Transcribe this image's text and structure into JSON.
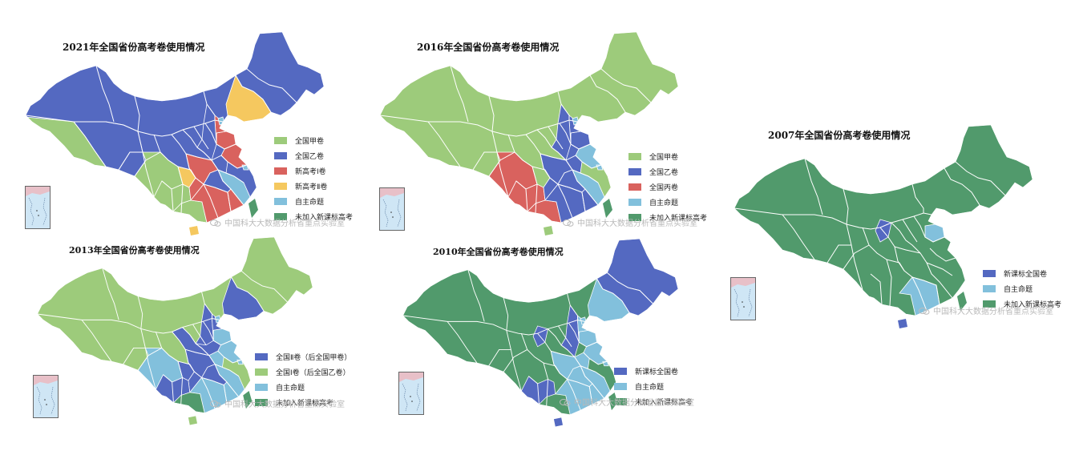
{
  "colors": {
    "jia": "#9dcb7b",
    "yi": "#5469c1",
    "newI": "#d9625e",
    "newII": "#f5c85f",
    "self": "#82c0dc",
    "notjoined": "#519a6c",
    "xijuan": "#d9625e",
    "newstd": "#5469c1"
  },
  "watermark": "中国科大大数据分析省重点实验室",
  "maps": [
    {
      "id": "map-2021",
      "title": "2021年全国省份高考卷使用情况",
      "legend": [
        {
          "label": "全国甲卷",
          "color": "#9dcb7b"
        },
        {
          "label": "全国乙卷",
          "color": "#5469c1"
        },
        {
          "label": "新高考Ⅰ卷",
          "color": "#d9625e"
        },
        {
          "label": "新高考Ⅱ卷",
          "color": "#f5c85f"
        },
        {
          "label": "自主命题",
          "color": "#82c0dc"
        },
        {
          "label": "未加入新课标高考",
          "color": "#519a6c"
        }
      ]
    },
    {
      "id": "map-2016",
      "title": "2016年全国省份高考卷使用情况",
      "legend": [
        {
          "label": "全国甲卷",
          "color": "#9dcb7b"
        },
        {
          "label": "全国乙卷",
          "color": "#5469c1"
        },
        {
          "label": "全国丙卷",
          "color": "#d9625e"
        },
        {
          "label": "自主命题",
          "color": "#82c0dc"
        },
        {
          "label": "未加入新课标高考",
          "color": "#519a6c"
        }
      ]
    },
    {
      "id": "map-2007",
      "title": "2007年全国省份高考卷使用情况",
      "legend": [
        {
          "label": "新课标全国卷",
          "color": "#5469c1"
        },
        {
          "label": "自主命题",
          "color": "#82c0dc"
        },
        {
          "label": "未加入新课标高考",
          "color": "#519a6c"
        }
      ]
    },
    {
      "id": "map-2013",
      "title": "2013年全国省份高考卷使用情况",
      "legend": [
        {
          "label": "全国Ⅱ卷（后全国甲卷）",
          "color": "#5469c1"
        },
        {
          "label": "全国Ⅰ卷（后全国乙卷）",
          "color": "#9dcb7b"
        },
        {
          "label": "自主命题",
          "color": "#82c0dc"
        },
        {
          "label": "未加入新课标高考",
          "color": "#519a6c"
        }
      ]
    },
    {
      "id": "map-2010",
      "title": "2010年全国省份高考卷使用情况",
      "legend": [
        {
          "label": "新课标全国卷",
          "color": "#5469c1"
        },
        {
          "label": "自主命题",
          "color": "#82c0dc"
        },
        {
          "label": "未加入新课标高考",
          "color": "#519a6c"
        }
      ]
    }
  ]
}
